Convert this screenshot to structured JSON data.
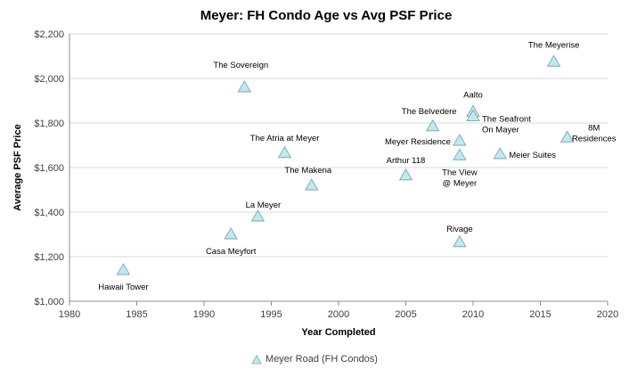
{
  "chart_data": {
    "type": "scatter",
    "title": "Meyer: FH Condo Age vs Avg PSF Price",
    "xlabel": "Year Completed",
    "ylabel": "Average PSF Price",
    "xlim": [
      1980,
      2020
    ],
    "ylim": [
      1000,
      2200
    ],
    "x_ticks": [
      "1980",
      "1985",
      "1990",
      "1995",
      "2000",
      "2005",
      "2010",
      "2015",
      "2020"
    ],
    "y_ticks": [
      "$1,000",
      "$1,200",
      "$1,400",
      "$1,600",
      "$1,800",
      "$2,000",
      "$2,200"
    ],
    "grid": "horizontal",
    "legend_position": "bottom",
    "series": [
      {
        "name": "Meyer Road (FH Condos)",
        "marker": "triangle",
        "color": "#bfe8f0",
        "points": [
          {
            "label": "Hawaii Tower",
            "x": 1984,
            "y": 1140
          },
          {
            "label": "Casa Meyfort",
            "x": 1992,
            "y": 1300
          },
          {
            "label": "The Sovereign",
            "x": 1993,
            "y": 1960
          },
          {
            "label": "La Meyer",
            "x": 1994,
            "y": 1380
          },
          {
            "label": "The Atria at Meyer",
            "x": 1996,
            "y": 1665
          },
          {
            "label": "The Makena",
            "x": 1998,
            "y": 1520
          },
          {
            "label": "Arthur 118",
            "x": 2005,
            "y": 1565
          },
          {
            "label": "The Belvedere",
            "x": 2007,
            "y": 1785
          },
          {
            "label": "Meyer Residence",
            "x": 2009,
            "y": 1720
          },
          {
            "label": "The View\n@ Meyer",
            "x": 2009,
            "y": 1655
          },
          {
            "label": "Rivage",
            "x": 2009,
            "y": 1265
          },
          {
            "label": "Aalto",
            "x": 2010,
            "y": 1850
          },
          {
            "label": "The Seafront\nOn Mayer",
            "x": 2010,
            "y": 1830
          },
          {
            "label": "Meier Suites",
            "x": 2012,
            "y": 1660
          },
          {
            "label": "The Meyerise",
            "x": 2016,
            "y": 2075
          },
          {
            "label": "8M\nResidences",
            "x": 2017,
            "y": 1735
          }
        ]
      }
    ]
  }
}
